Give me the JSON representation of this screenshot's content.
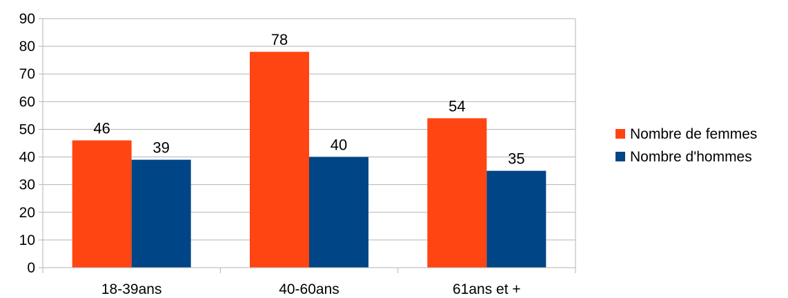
{
  "chart_data": {
    "type": "bar",
    "categories": [
      "18-39ans",
      "40-60ans",
      "61ans et +"
    ],
    "series": [
      {
        "name": "Nombre de femmes",
        "values": [
          46,
          78,
          54
        ],
        "color": "#ff4512"
      },
      {
        "name": "Nombre d'hommes",
        "values": [
          39,
          40,
          35
        ],
        "color": "#004586"
      }
    ],
    "ylim": [
      0,
      90
    ],
    "yticks": [
      "0",
      "10",
      "20",
      "30",
      "40",
      "50",
      "60",
      "70",
      "80",
      "90"
    ],
    "grid": true,
    "legend_position": "right",
    "data_labels": true
  }
}
